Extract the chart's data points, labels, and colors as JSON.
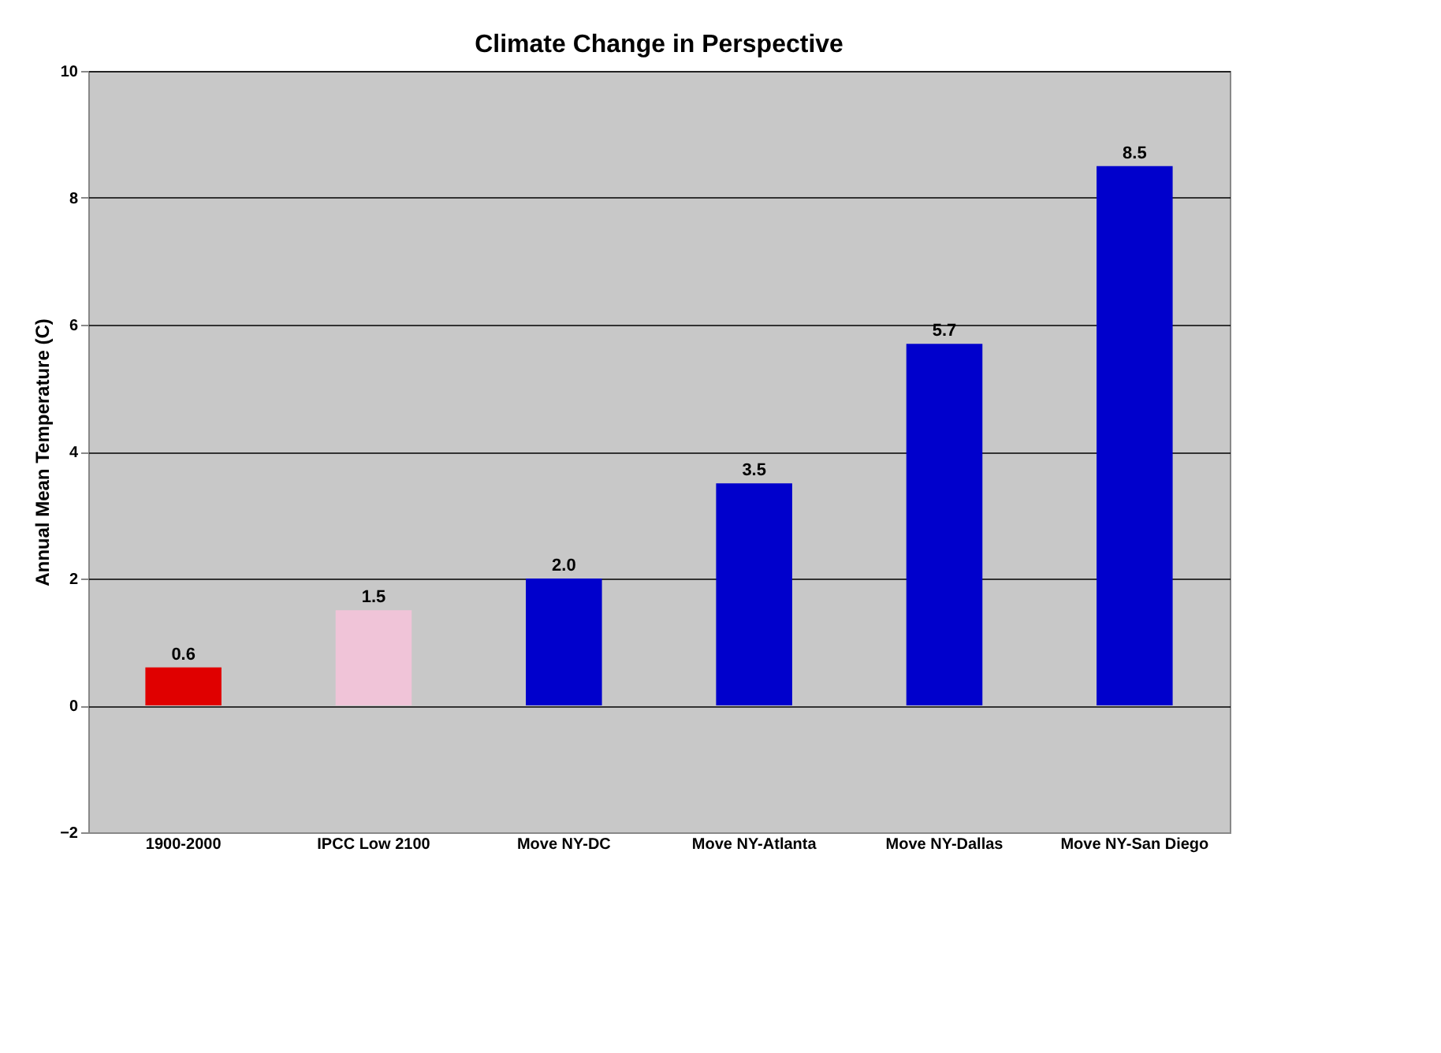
{
  "chart_data": {
    "type": "bar",
    "title": "Climate Change in Perspective",
    "ylabel": "Annual Mean Temperature (C)",
    "categories": [
      "1900-2000",
      "IPCC Low 2100",
      "Move NY-DC",
      "Move NY-Atlanta",
      "Move NY-Dallas",
      "Move NY-San Diego"
    ],
    "values": [
      0.6,
      1.5,
      2.0,
      3.5,
      5.7,
      8.5
    ],
    "value_labels": [
      "0.6",
      "1.5",
      "2.0",
      "3.5",
      "5.7",
      "8.5"
    ],
    "colors": [
      "#e00000",
      "#f0c4d8",
      "#0000cc",
      "#0000cc",
      "#0000cc",
      "#0000cc"
    ],
    "ylim": [
      -2,
      10
    ],
    "yticks": [
      -2,
      0,
      2,
      4,
      6,
      8,
      10
    ],
    "grid": "y",
    "legend": false
  }
}
